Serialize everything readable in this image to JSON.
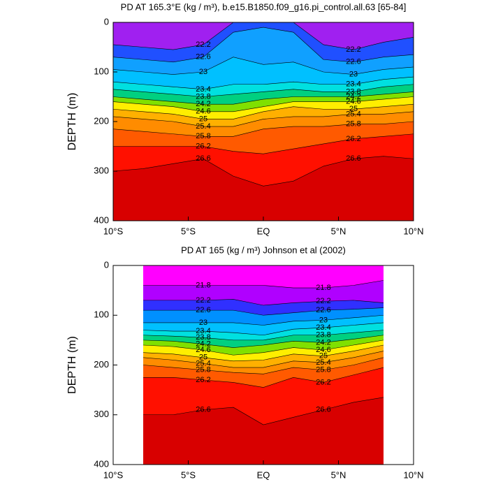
{
  "chart_data": [
    {
      "type": "contour",
      "title": "PD AT 165.3°E (kg / m³), b.e15.B1850.f09_g16.pi_control.all.63 [65-84]",
      "ylabel": "DEPTH (m)",
      "xlim": [
        -10,
        10
      ],
      "ylim": [
        400,
        0
      ],
      "xticks": [
        {
          "value": -10,
          "label": "10°S"
        },
        {
          "value": -5,
          "label": "5°S"
        },
        {
          "value": 0,
          "label": "EQ"
        },
        {
          "value": 5,
          "label": "5°N"
        },
        {
          "value": 10,
          "label": "10°N"
        }
      ],
      "yticks": [
        0,
        100,
        200,
        300,
        400
      ],
      "top_color": "#a020f0",
      "x": [
        -10,
        -8,
        -6,
        -4,
        -2,
        0,
        2,
        4,
        6,
        8,
        10
      ],
      "series": [
        {
          "name": "22.2",
          "color": "#2050ff",
          "values": [
            45,
            50,
            55,
            45,
            0,
            0,
            0,
            45,
            55,
            40,
            30
          ]
        },
        {
          "name": "22.6",
          "color": "#10a0ff",
          "values": [
            70,
            75,
            80,
            70,
            20,
            10,
            20,
            75,
            80,
            70,
            65
          ]
        },
        {
          "name": "23",
          "color": "#00c0ff",
          "values": [
            95,
            100,
            105,
            100,
            70,
            85,
            80,
            100,
            105,
            95,
            90
          ]
        },
        {
          "name": "23.4",
          "color": "#00e0e0",
          "values": [
            120,
            125,
            130,
            135,
            125,
            125,
            120,
            125,
            125,
            115,
            110
          ]
        },
        {
          "name": "23.8",
          "color": "#00d080",
          "values": [
            135,
            140,
            145,
            150,
            145,
            140,
            135,
            140,
            140,
            130,
            125
          ]
        },
        {
          "name": "24.2",
          "color": "#80e000",
          "values": [
            150,
            155,
            160,
            165,
            165,
            155,
            150,
            150,
            150,
            145,
            140
          ]
        },
        {
          "name": "24.6",
          "color": "#ffee00",
          "values": [
            160,
            165,
            170,
            180,
            180,
            170,
            160,
            160,
            160,
            155,
            150
          ]
        },
        {
          "name": "25",
          "color": "#ffb000",
          "values": [
            175,
            180,
            185,
            195,
            195,
            180,
            170,
            175,
            175,
            170,
            165
          ]
        },
        {
          "name": "25.4",
          "color": "#ff8c00",
          "values": [
            190,
            195,
            200,
            210,
            210,
            195,
            190,
            190,
            185,
            185,
            180
          ]
        },
        {
          "name": "25.8",
          "color": "#ff5a00",
          "values": [
            215,
            220,
            225,
            230,
            230,
            215,
            210,
            210,
            205,
            205,
            200
          ]
        },
        {
          "name": "26.2",
          "color": "#ff1000",
          "values": [
            250,
            250,
            250,
            250,
            260,
            265,
            255,
            245,
            235,
            230,
            225
          ]
        },
        {
          "name": "26.6",
          "color": "#d80000",
          "values": [
            300,
            295,
            285,
            275,
            310,
            330,
            320,
            290,
            275,
            270,
            275
          ]
        }
      ]
    },
    {
      "type": "contour",
      "title": "PD AT 165 (kg / m³) Johnson et al (2002)",
      "ylabel": "DEPTH (m)",
      "xlim": [
        -10,
        10
      ],
      "ylim": [
        400,
        0
      ],
      "xticks": [
        {
          "value": -10,
          "label": "10°S"
        },
        {
          "value": -5,
          "label": "5°S"
        },
        {
          "value": 0,
          "label": "EQ"
        },
        {
          "value": 5,
          "label": "5°N"
        },
        {
          "value": 10,
          "label": "10°N"
        }
      ],
      "yticks": [
        0,
        100,
        200,
        300,
        400
      ],
      "top_color": "#ff00ff",
      "x": [
        -8,
        -6,
        -4,
        -2,
        0,
        2,
        4,
        6,
        8
      ],
      "series": [
        {
          "name": "21.8",
          "color": "#b000ff",
          "values": [
            40,
            40,
            40,
            40,
            40,
            45,
            45,
            40,
            30
          ]
        },
        {
          "name": "22.2",
          "color": "#3030ff",
          "values": [
            70,
            70,
            70,
            68,
            80,
            75,
            72,
            70,
            75
          ]
        },
        {
          "name": "22.6",
          "color": "#0090ff",
          "values": [
            90,
            90,
            90,
            90,
            100,
            95,
            90,
            88,
            85
          ]
        },
        {
          "name": "23",
          "color": "#00c0ff",
          "values": [
            115,
            115,
            115,
            115,
            120,
            112,
            110,
            105,
            100
          ]
        },
        {
          "name": "23.4",
          "color": "#00e0e0",
          "values": [
            130,
            132,
            132,
            135,
            140,
            128,
            125,
            120,
            115
          ]
        },
        {
          "name": "23.8",
          "color": "#00d080",
          "values": [
            140,
            142,
            145,
            150,
            150,
            140,
            140,
            135,
            130
          ]
        },
        {
          "name": "24.2",
          "color": "#80e000",
          "values": [
            150,
            152,
            158,
            165,
            160,
            152,
            155,
            148,
            140
          ]
        },
        {
          "name": "24.6",
          "color": "#ffee00",
          "values": [
            160,
            163,
            170,
            180,
            175,
            165,
            170,
            160,
            150
          ]
        },
        {
          "name": "25",
          "color": "#ffb000",
          "values": [
            175,
            178,
            185,
            192,
            190,
            178,
            182,
            172,
            160
          ]
        },
        {
          "name": "25.4",
          "color": "#ff8c00",
          "values": [
            185,
            190,
            197,
            205,
            205,
            192,
            195,
            185,
            172
          ]
        },
        {
          "name": "25.8",
          "color": "#ff5a00",
          "values": [
            200,
            205,
            210,
            215,
            218,
            205,
            210,
            200,
            185
          ]
        },
        {
          "name": "26.2",
          "color": "#ff1000",
          "values": [
            225,
            225,
            230,
            235,
            245,
            225,
            235,
            220,
            205
          ]
        },
        {
          "name": "26.6",
          "color": "#d80000",
          "values": [
            300,
            300,
            290,
            285,
            320,
            305,
            290,
            275,
            265
          ]
        }
      ]
    }
  ]
}
